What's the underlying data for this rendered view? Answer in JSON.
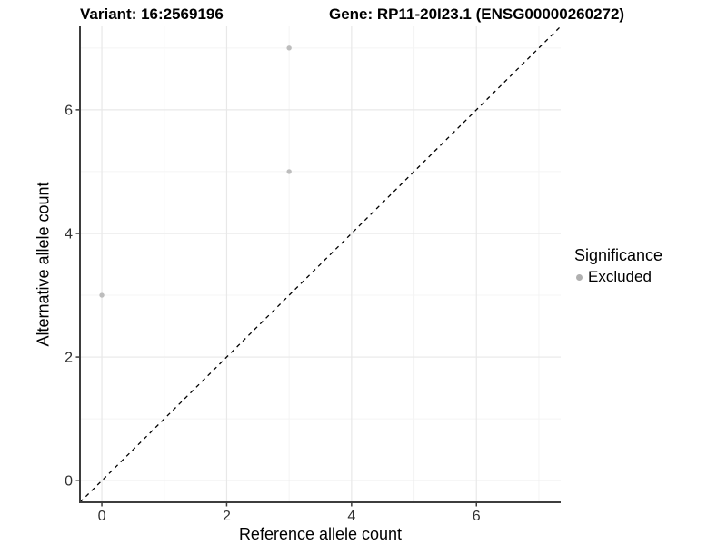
{
  "chart_data": {
    "type": "scatter",
    "titles": {
      "left": "Variant: 16:2569196",
      "right": "Gene: RP11-20I23.1 (ENSG00000260272)"
    },
    "xlabel": "Reference allele count",
    "ylabel": "Alternative allele count",
    "xlim": [
      -0.35,
      7.35
    ],
    "ylim": [
      -0.35,
      7.35
    ],
    "xticks": [
      0,
      2,
      4,
      6
    ],
    "yticks": [
      0,
      2,
      4,
      6
    ],
    "xminor": [
      1,
      3,
      5,
      7
    ],
    "yminor": [
      1,
      3,
      5,
      7
    ],
    "grid": {
      "on": true,
      "major_color": "#e8e8e8",
      "minor_color": "#f4f4f4"
    },
    "axis_color": "#3d3d3d",
    "tick_label_color": "#303030",
    "identity_line": {
      "style": "dashed",
      "color": "#000000",
      "x1": -0.35,
      "y1": -0.35,
      "x2": 7.35,
      "y2": 7.35
    },
    "series": [
      {
        "name": "Excluded",
        "color": "#bdbdbd",
        "points": [
          [
            0,
            3
          ],
          [
            3,
            5
          ],
          [
            3,
            7
          ]
        ]
      }
    ],
    "legend": {
      "title": "Significance",
      "position": "right",
      "items": [
        {
          "label": "Excluded",
          "color": "#b0b0b0"
        }
      ]
    }
  }
}
